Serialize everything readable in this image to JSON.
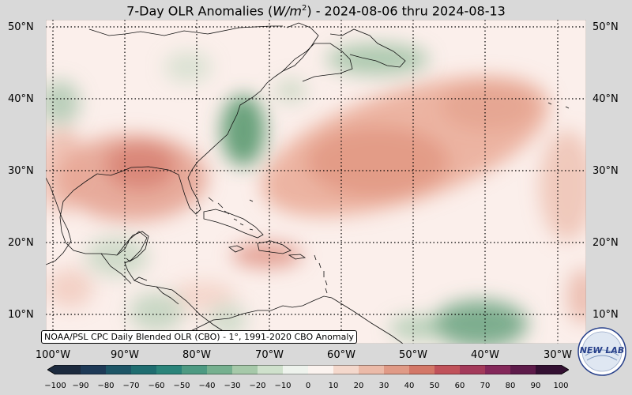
{
  "title": {
    "prefix": "7-Day OLR Anomalies (",
    "unit_base": "W/m",
    "unit_exp": "2",
    "suffix": ") - 2024-08-06 thru 2024-08-13"
  },
  "lat_labels": [
    "50°N",
    "40°N",
    "30°N",
    "20°N",
    "10°N"
  ],
  "lat_labels_right": [
    "50°N",
    "40°N",
    "30°N",
    "20°N",
    "10°N"
  ],
  "lon_labels": [
    "100°W",
    "90°W",
    "80°W",
    "70°W",
    "60°W",
    "50°W",
    "40°W",
    "30°W"
  ],
  "credit": "NOAA/PSL CPC Daily Blended OLR (CBO) - 1°, 1991-2020 CBO Anomaly",
  "logo": {
    "icon": "newlab-logo-icon",
    "text": "NEW LAB"
  },
  "colorbar": {
    "ticks": [
      "−100",
      "−90",
      "−80",
      "−70",
      "−60",
      "−50",
      "−40",
      "−30",
      "−20",
      "−10",
      "0",
      "10",
      "20",
      "30",
      "40",
      "50",
      "60",
      "70",
      "80",
      "90",
      "100"
    ],
    "colors": [
      "#1c2a3e",
      "#1e3a57",
      "#1d5566",
      "#1f6d70",
      "#2b847a",
      "#4d9a82",
      "#76b08f",
      "#a6c9a9",
      "#cfe1cc",
      "#eef3ed",
      "#fbf3ef",
      "#f4d8cc",
      "#ebbaa8",
      "#e09a86",
      "#d37767",
      "#c0525a",
      "#a33a5a",
      "#84285a",
      "#5d1b4a",
      "#331032"
    ]
  },
  "colors": {
    "background": "#d9d9d9",
    "neutral": "#fbefeb",
    "positive": "#dd8b76",
    "negative": "#5f9f76"
  }
}
